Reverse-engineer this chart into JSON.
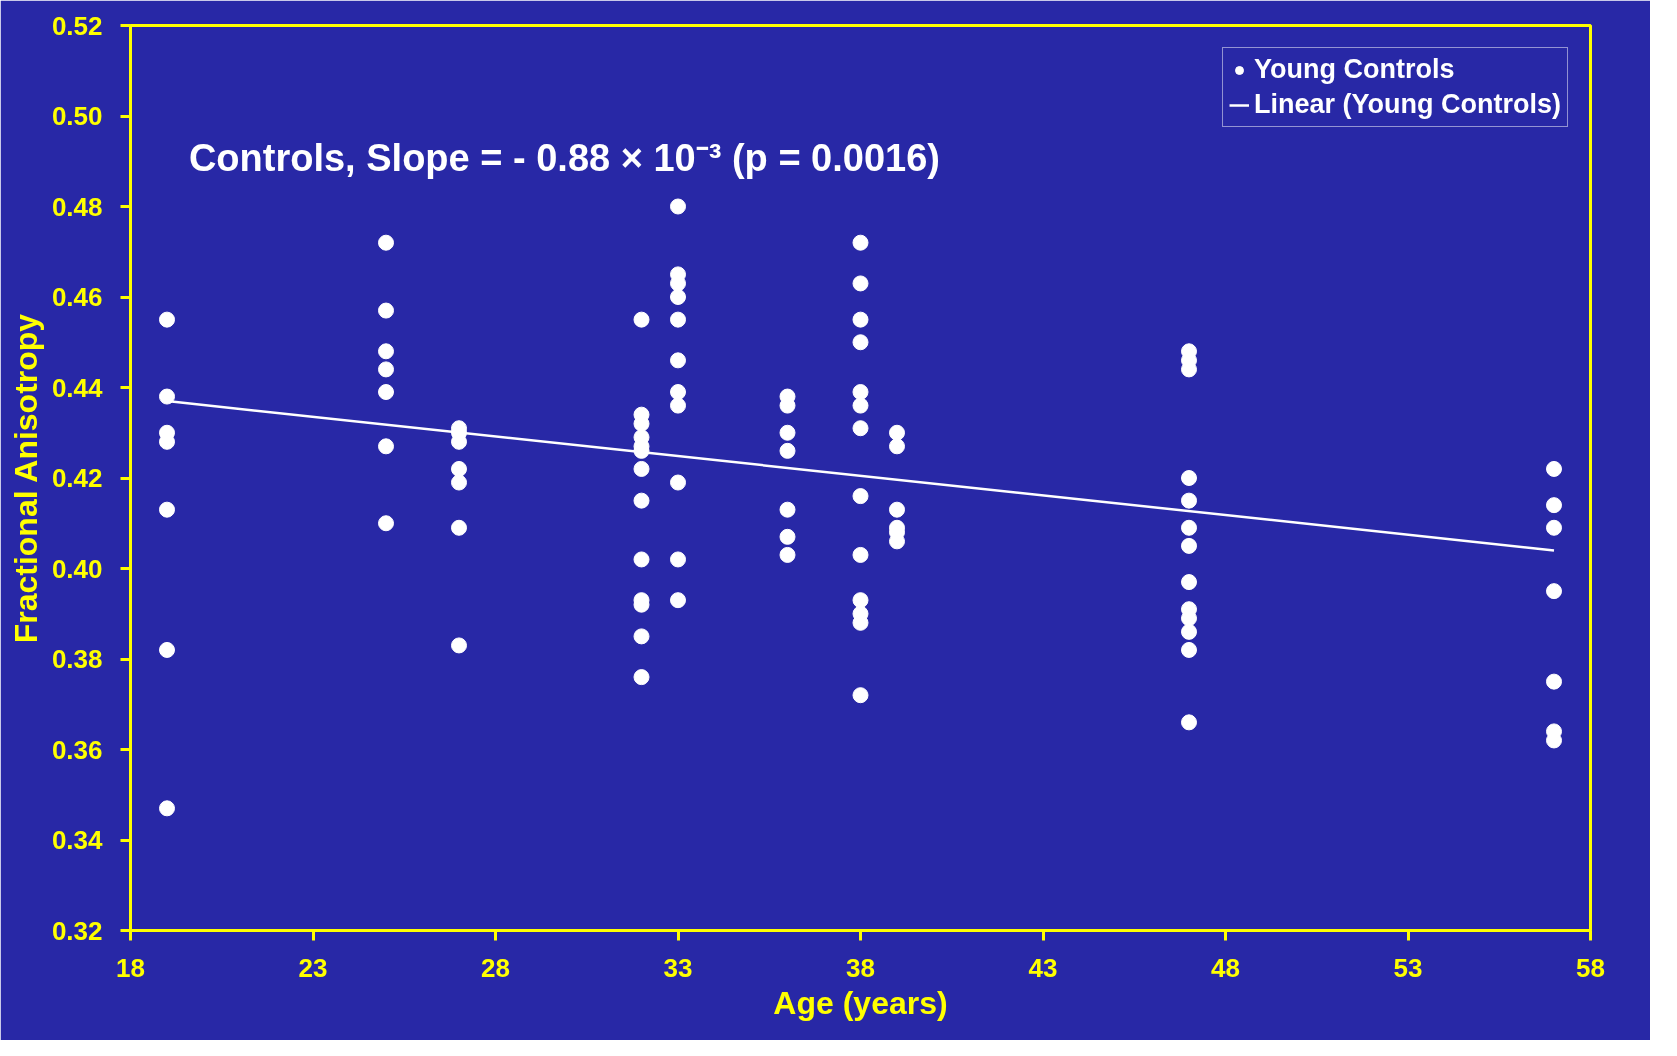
{
  "chart_data": {
    "type": "scatter",
    "xlabel": "Age (years)",
    "ylabel": "Fractional Anisotropy",
    "annotations": [
      "Controls, Slope = - 0.88 × 10⁻³ (p = 0.0016)"
    ],
    "xlim": [
      18,
      58
    ],
    "xticks": [
      18,
      23,
      28,
      33,
      38,
      43,
      48,
      53,
      58
    ],
    "ylim": [
      0.32,
      0.52
    ],
    "yticks": [
      {
        "value": 0.32,
        "label": "0.32"
      },
      {
        "value": 0.34,
        "label": "0.34"
      },
      {
        "value": 0.36,
        "label": "0.36"
      },
      {
        "value": 0.38,
        "label": "0.38"
      },
      {
        "value": 0.4,
        "label": "0.40"
      },
      {
        "value": 0.42,
        "label": "0.42"
      },
      {
        "value": 0.44,
        "label": "0.44"
      },
      {
        "value": 0.46,
        "label": "0.46"
      },
      {
        "value": 0.48,
        "label": "0.48"
      },
      {
        "value": 0.5,
        "label": "0.50"
      },
      {
        "value": 0.52,
        "label": "0.52"
      }
    ],
    "grid": false,
    "legend": "top right",
    "series": [
      {
        "name": "Young Controls",
        "marker": "circle",
        "color": "#ffffff",
        "x": [
          19,
          19,
          19,
          19,
          19,
          19,
          19,
          25,
          25,
          25,
          25,
          25,
          25,
          25,
          27,
          27,
          27,
          27,
          27,
          27,
          27,
          32,
          32,
          32,
          32,
          32,
          32,
          32,
          32,
          32,
          32,
          32,
          32,
          32,
          33,
          33,
          33,
          33,
          33,
          33,
          33,
          33,
          33,
          33,
          33,
          36,
          36,
          36,
          36,
          36,
          36,
          36,
          38,
          38,
          38,
          38,
          38,
          38,
          38,
          38,
          38,
          38,
          38,
          38,
          38,
          39,
          39,
          39,
          39,
          39,
          39,
          47,
          47,
          47,
          47,
          47,
          47,
          47,
          47,
          47,
          47,
          47,
          47,
          47,
          57,
          57,
          57,
          57,
          57,
          57,
          57
        ],
        "values": [
          0.455,
          0.438,
          0.43,
          0.428,
          0.413,
          0.382,
          0.347,
          0.472,
          0.457,
          0.448,
          0.444,
          0.439,
          0.427,
          0.41,
          0.431,
          0.43,
          0.428,
          0.422,
          0.419,
          0.409,
          0.383,
          0.455,
          0.434,
          0.432,
          0.429,
          0.427,
          0.426,
          0.422,
          0.415,
          0.402,
          0.393,
          0.392,
          0.385,
          0.376,
          0.48,
          0.465,
          0.463,
          0.46,
          0.455,
          0.446,
          0.439,
          0.436,
          0.419,
          0.402,
          0.393,
          0.438,
          0.436,
          0.43,
          0.426,
          0.413,
          0.407,
          0.403,
          0.472,
          0.463,
          0.455,
          0.45,
          0.439,
          0.436,
          0.431,
          0.416,
          0.403,
          0.393,
          0.39,
          0.388,
          0.372,
          0.43,
          0.427,
          0.413,
          0.409,
          0.408,
          0.406,
          0.448,
          0.446,
          0.444,
          0.42,
          0.415,
          0.409,
          0.405,
          0.397,
          0.391,
          0.389,
          0.386,
          0.382,
          0.366,
          0.422,
          0.414,
          0.409,
          0.395,
          0.375,
          0.364,
          0.362
        ]
      },
      {
        "name": "Linear (Young Controls)",
        "type": "line",
        "color": "#ffffff",
        "line_style": "solid",
        "x": [
          19,
          57
        ],
        "values": [
          0.437,
          0.404
        ]
      }
    ]
  }
}
